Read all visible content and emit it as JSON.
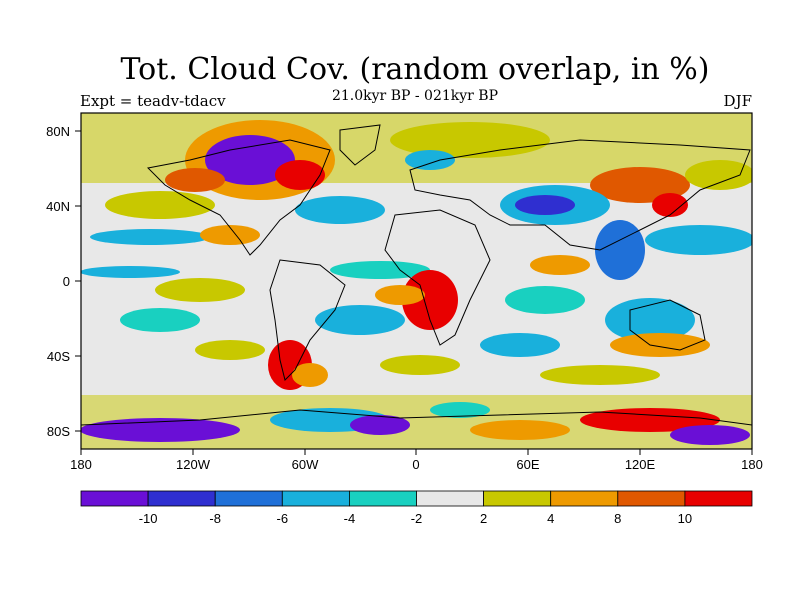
{
  "title": "Tot. Cloud Cov. (random overlap, in %)",
  "subtitle": "21.0kyr BP - 021kyr BP",
  "experiment_label": "Expt = teadv-tdacv",
  "season_label": "DJF",
  "lat_ticks": [
    "80N",
    "40N",
    "0",
    "40S",
    "80S"
  ],
  "lon_ticks": [
    "180",
    "120W",
    "60W",
    "0",
    "60E",
    "120E",
    "180"
  ],
  "colorbar": {
    "colors": [
      "#6a0fd6",
      "#2f2fd0",
      "#1f70d8",
      "#19b0dc",
      "#19d0c0",
      "#e8e8e8",
      "#c8c800",
      "#ee9a00",
      "#e05800",
      "#e80000"
    ],
    "labels": [
      "-10",
      "-8",
      "-6",
      "-4",
      "-2",
      "2",
      "4",
      "8",
      "10"
    ]
  }
}
